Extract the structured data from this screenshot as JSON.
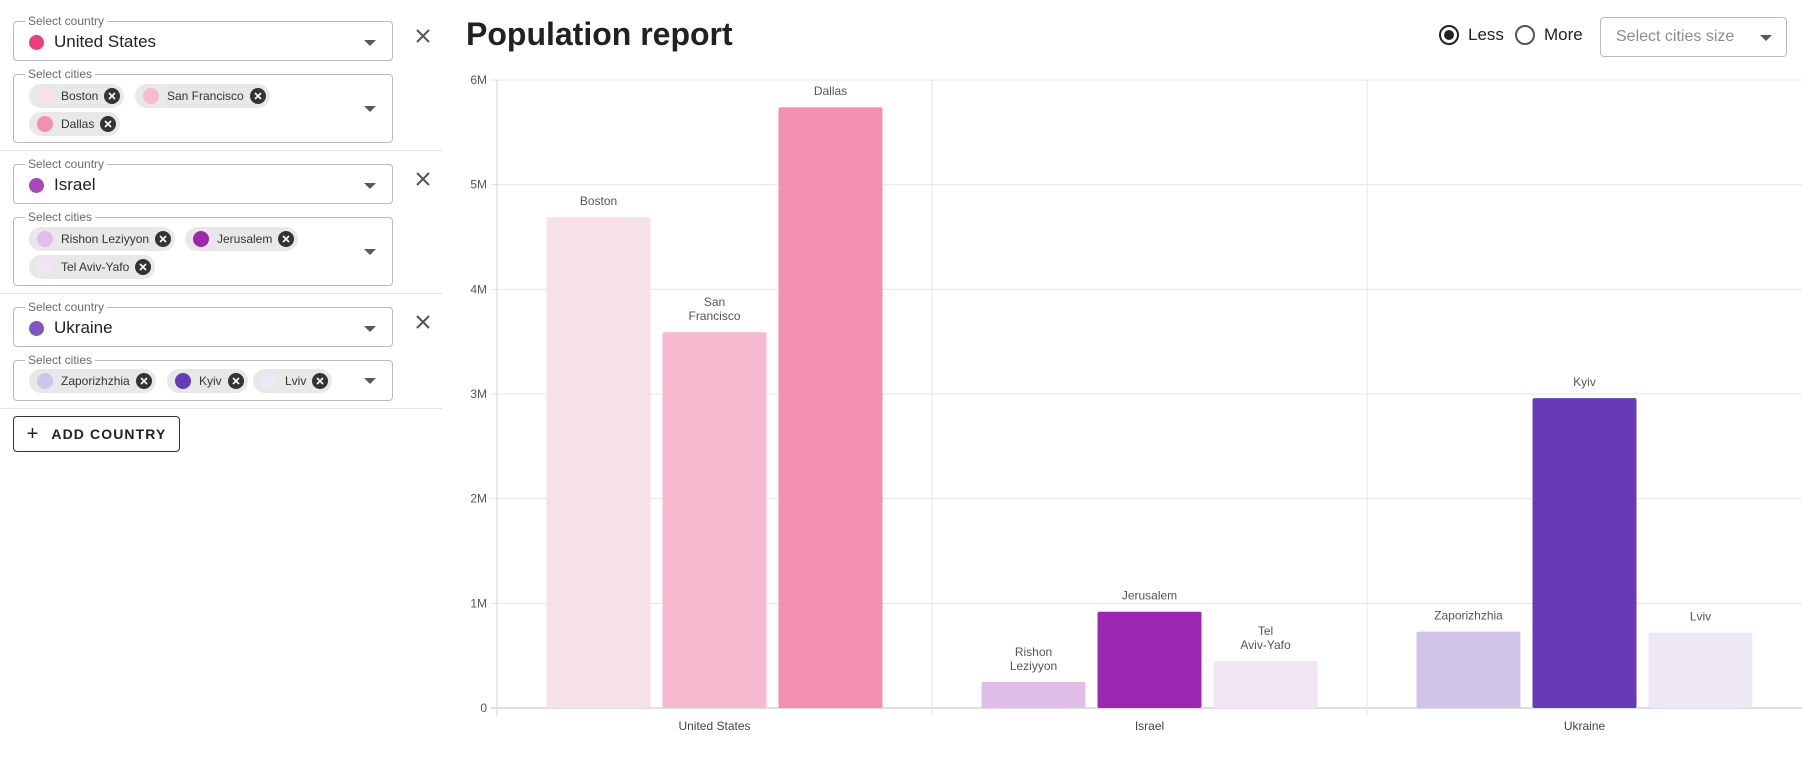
{
  "sidebar": {
    "country_label": "Select country",
    "cities_label": "Select cities",
    "countries": [
      {
        "name": "United States",
        "color": "#ec407a",
        "cities": [
          {
            "name": "Boston",
            "color": "#f8e0ea"
          },
          {
            "name": "San Francisco",
            "color": "#f6b9cf"
          },
          {
            "name": "Dallas",
            "color": "#f38fb1"
          }
        ]
      },
      {
        "name": "Israel",
        "color": "#ab47bc",
        "cities": [
          {
            "name": "Rishon Leziyyon",
            "color": "#e1bee7"
          },
          {
            "name": "Jerusalem",
            "color": "#9c27b0"
          },
          {
            "name": "Tel Aviv-Yafo",
            "color": "#f1e4f5"
          }
        ]
      },
      {
        "name": "Ukraine",
        "color": "#7e57c2",
        "cities": [
          {
            "name": "Zaporizhzhia",
            "color": "#d1c4e9"
          },
          {
            "name": "Kyiv",
            "color": "#673ab7"
          },
          {
            "name": "Lviv",
            "color": "#ede7f6"
          }
        ]
      }
    ],
    "add_button_label": "ADD COUNTRY"
  },
  "header": {
    "title": "Population report",
    "radio_less": "Less",
    "radio_more": "More",
    "radio_selected": "Less",
    "size_select_placeholder": "Select cities size"
  },
  "chart_data": {
    "type": "bar",
    "title": "",
    "xlabel": "",
    "ylabel": "",
    "ylim": [
      0,
      6000000
    ],
    "y_ticks": [
      0,
      1000000,
      2000000,
      3000000,
      4000000,
      5000000,
      6000000
    ],
    "y_tick_labels": [
      "0",
      "1M",
      "2M",
      "3M",
      "4M",
      "5M",
      "6M"
    ],
    "grid": true,
    "groups": [
      {
        "category": "United States",
        "bars": [
          {
            "label": "Boston",
            "value": 4690000,
            "color": "#f8e0ea"
          },
          {
            "label": "San Francisco",
            "value": 3590000,
            "color": "#f6b9cf"
          },
          {
            "label": "Dallas",
            "value": 5740000,
            "color": "#f38fb1"
          }
        ]
      },
      {
        "category": "Israel",
        "bars": [
          {
            "label": "Rishon Leziyyon",
            "value": 250000,
            "color": "#e1bee7"
          },
          {
            "label": "Jerusalem",
            "value": 920000,
            "color": "#9c27b0"
          },
          {
            "label": "Tel Aviv-Yafo",
            "value": 450000,
            "color": "#f1e4f5"
          }
        ]
      },
      {
        "category": "Ukraine",
        "bars": [
          {
            "label": "Zaporizhzhia",
            "value": 730000,
            "color": "#d1c4e9"
          },
          {
            "label": "Kyiv",
            "value": 2960000,
            "color": "#673ab7"
          },
          {
            "label": "Lviv",
            "value": 720000,
            "color": "#ede7f6"
          }
        ]
      }
    ]
  }
}
